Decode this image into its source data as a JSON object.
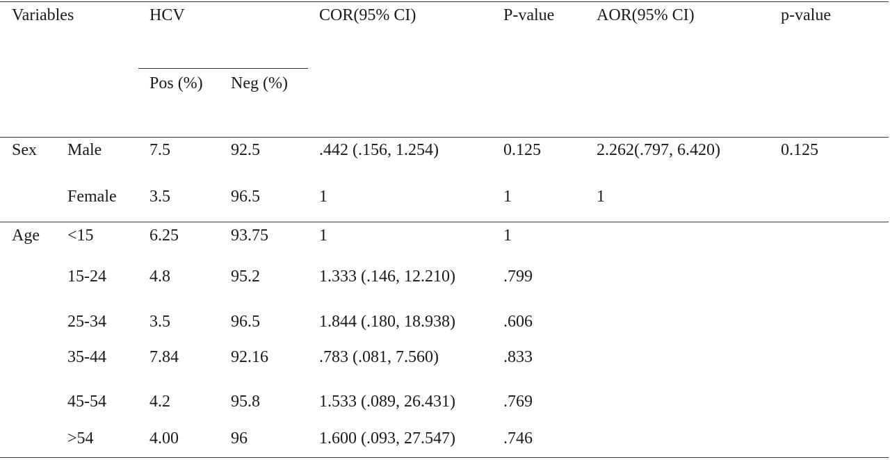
{
  "header": {
    "variables": "Variables",
    "hcv": "HCV",
    "pos": "Pos (%)",
    "neg": "Neg (%)",
    "cor": "COR(95% CI)",
    "p_value": "P-value",
    "aor": "AOR(95% CI)",
    "p_value2": "p-value"
  },
  "groups": {
    "sex": "Sex",
    "age": "Age"
  },
  "rows": [
    {
      "level": "Male",
      "pos": "7.5",
      "neg": "92.5",
      "cor": ".442 (.156, 1.254)",
      "p": "0.125",
      "aor": "2.262(.797, 6.420)",
      "p2": "0.125"
    },
    {
      "level": "Female",
      "pos": "3.5",
      "neg": "96.5",
      "cor": "1",
      "p": "1",
      "aor": "1",
      "p2": ""
    },
    {
      "level": "<15",
      "pos": "6.25",
      "neg": "93.75",
      "cor": "1",
      "p": "1",
      "aor": "",
      "p2": ""
    },
    {
      "level": "15-24",
      "pos": "4.8",
      "neg": "95.2",
      "cor": "1.333 (.146, 12.210)",
      "p": ".799",
      "aor": "",
      "p2": ""
    },
    {
      "level": "25-34",
      "pos": "3.5",
      "neg": "96.5",
      "cor": "1.844 (.180, 18.938)",
      "p": ".606",
      "aor": "",
      "p2": ""
    },
    {
      "level": "35-44",
      "pos": "7.84",
      "neg": "92.16",
      "cor": ".783 (.081, 7.560)",
      "p": ".833",
      "aor": "",
      "p2": ""
    },
    {
      "level": "45-54",
      "pos": "4.2",
      "neg": "95.8",
      "cor": "1.533 (.089, 26.431)",
      "p": ".769",
      "aor": "",
      "p2": ""
    },
    {
      "level": ">54",
      "pos": "4.00",
      "neg": "96",
      "cor": "1.600 (.093, 27.547)",
      "p": ".746",
      "aor": "",
      "p2": ""
    }
  ]
}
